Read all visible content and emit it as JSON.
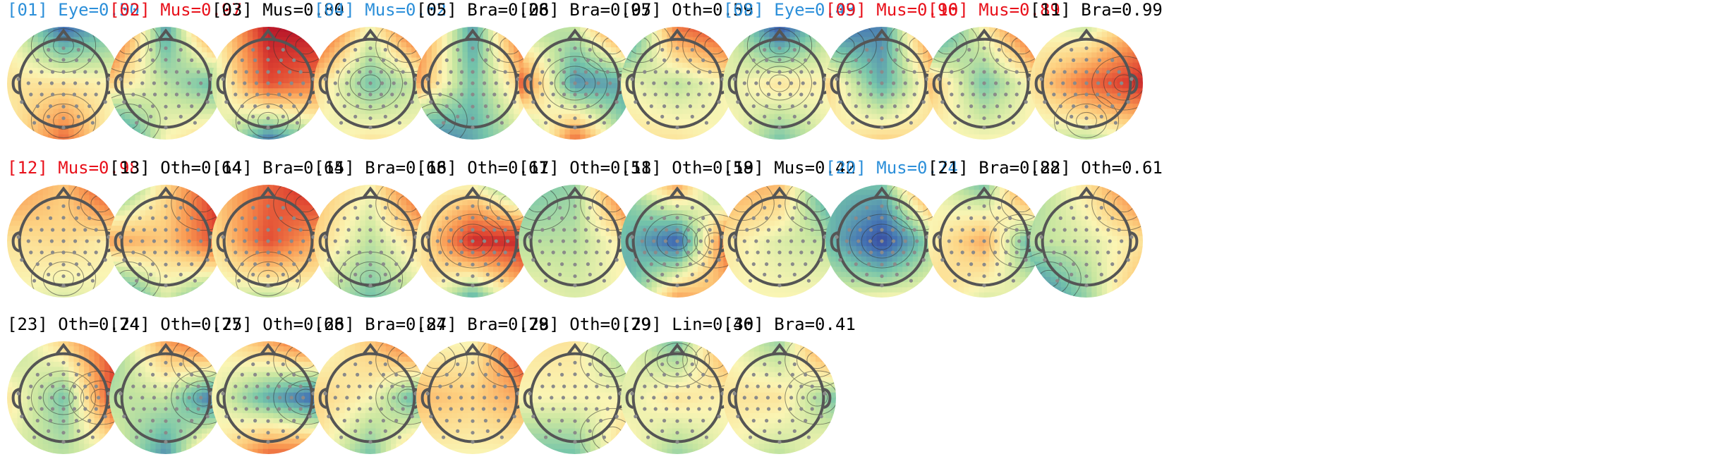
{
  "colors": {
    "black": "#000000",
    "red": "#e8101a",
    "blue": "#2c8fd9"
  },
  "components": [
    {
      "index": "[01]",
      "label": "Eye=0.50",
      "color": "blue",
      "map": [
        [
          0.5,
          0.12,
          0.32
        ],
        [
          0.55,
          0.55,
          0.5
        ],
        [
          0.5,
          0.8,
          0.45
        ]
      ]
    },
    {
      "index": "[02]",
      "label": "Mus=0.97",
      "color": "red",
      "map": [
        [
          0.95,
          0.22,
          0.95
        ],
        [
          0.6,
          0.4,
          0.25
        ],
        [
          0.05,
          0.5,
          0.62
        ]
      ]
    },
    {
      "index": "[03]",
      "label": "Mus=0.80",
      "color": "black",
      "map": [
        [
          0.5,
          0.95,
          0.98
        ],
        [
          0.4,
          0.85,
          0.75
        ],
        [
          0.55,
          0.15,
          0.4
        ]
      ]
    },
    {
      "index": "[04]",
      "label": "Mus=0.62",
      "color": "blue",
      "map": [
        [
          0.95,
          0.48,
          0.98
        ],
        [
          0.6,
          0.3,
          0.45
        ],
        [
          0.45,
          0.55,
          0.5
        ]
      ]
    },
    {
      "index": "[05]",
      "label": "Bra=0.28",
      "color": "black",
      "map": [
        [
          0.8,
          0.22,
          0.95
        ],
        [
          0.7,
          0.3,
          0.65
        ],
        [
          0.1,
          0.25,
          0.45
        ]
      ]
    },
    {
      "index": "[06]",
      "label": "Bra=0.95",
      "color": "black",
      "map": [
        [
          0.35,
          0.42,
          0.92
        ],
        [
          0.85,
          0.2,
          0.25
        ],
        [
          0.2,
          0.8,
          0.3
        ]
      ]
    },
    {
      "index": "[07]",
      "label": "Oth=0.59",
      "color": "black",
      "map": [
        [
          0.06,
          0.78,
          0.92
        ],
        [
          0.5,
          0.4,
          0.52
        ],
        [
          0.55,
          0.55,
          0.48
        ]
      ]
    },
    {
      "index": "[08]",
      "label": "Eye=0.43",
      "color": "blue",
      "map": [
        [
          0.5,
          0.08,
          0.45
        ],
        [
          0.45,
          0.55,
          0.5
        ],
        [
          0.55,
          0.3,
          0.5
        ]
      ]
    },
    {
      "index": "[09]",
      "label": "Mus=0.96",
      "color": "red",
      "map": [
        [
          0.12,
          0.18,
          0.9
        ],
        [
          0.6,
          0.25,
          0.6
        ],
        [
          0.5,
          0.6,
          0.55
        ]
      ]
    },
    {
      "index": "[10]",
      "label": "Mus=0.89",
      "color": "red",
      "map": [
        [
          0.08,
          0.52,
          0.95
        ],
        [
          0.65,
          0.3,
          0.55
        ],
        [
          0.5,
          0.5,
          0.5
        ]
      ]
    },
    {
      "index": "[11]",
      "label": "Bra=0.99",
      "color": "black",
      "map": [
        [
          0.5,
          0.42,
          0.7
        ],
        [
          0.55,
          0.8,
          0.92
        ],
        [
          0.45,
          0.4,
          0.5
        ]
      ]
    },
    {
      "index": "[12]",
      "label": "Mus=0.98",
      "color": "red",
      "map": [
        [
          0.75,
          0.62,
          0.97
        ],
        [
          0.55,
          0.58,
          0.5
        ],
        [
          0.5,
          0.45,
          0.5
        ]
      ]
    },
    {
      "index": "[13]",
      "label": "Oth=0.64",
      "color": "black",
      "map": [
        [
          0.16,
          0.58,
          0.95
        ],
        [
          0.7,
          0.62,
          0.88
        ],
        [
          0.1,
          0.45,
          0.2
        ]
      ]
    },
    {
      "index": "[14]",
      "label": "Bra=0.64",
      "color": "black",
      "map": [
        [
          0.62,
          0.8,
          0.98
        ],
        [
          0.55,
          0.85,
          0.65
        ],
        [
          0.45,
          0.4,
          0.48
        ]
      ]
    },
    {
      "index": "[15]",
      "label": "Bra=0.68",
      "color": "black",
      "map": [
        [
          0.65,
          0.5,
          0.95
        ],
        [
          0.6,
          0.4,
          0.6
        ],
        [
          0.45,
          0.3,
          0.45
        ]
      ]
    },
    {
      "index": "[16]",
      "label": "Oth=0.61",
      "color": "black",
      "map": [
        [
          0.5,
          0.5,
          0.18
        ],
        [
          0.5,
          0.92,
          0.92
        ],
        [
          0.6,
          0.25,
          0.65
        ]
      ]
    },
    {
      "index": "[17]",
      "label": "Oth=0.51",
      "color": "black",
      "map": [
        [
          0.28,
          0.35,
          0.95
        ],
        [
          0.4,
          0.4,
          0.55
        ],
        [
          0.5,
          0.45,
          0.5
        ]
      ]
    },
    {
      "index": "[18]",
      "label": "Oth=0.58",
      "color": "black",
      "map": [
        [
          0.3,
          0.7,
          0.18
        ],
        [
          0.3,
          0.1,
          0.92
        ],
        [
          0.2,
          0.7,
          0.6
        ]
      ]
    },
    {
      "index": "[19]",
      "label": "Mus=0.42",
      "color": "black",
      "map": [
        [
          0.7,
          0.65,
          0.1
        ],
        [
          0.55,
          0.45,
          0.4
        ],
        [
          0.5,
          0.5,
          0.5
        ]
      ]
    },
    {
      "index": "[20]",
      "label": "Mus=0.74",
      "color": "blue",
      "map": [
        [
          0.28,
          0.3,
          0.92
        ],
        [
          0.3,
          0.05,
          0.4
        ],
        [
          0.45,
          0.5,
          0.5
        ]
      ]
    },
    {
      "index": "[21]",
      "label": "Bra=0.88",
      "color": "black",
      "map": [
        [
          0.5,
          0.3,
          0.97
        ],
        [
          0.5,
          0.68,
          0.15
        ],
        [
          0.6,
          0.45,
          0.5
        ]
      ]
    },
    {
      "index": "[22]",
      "label": "Oth=0.61",
      "color": "black",
      "map": [
        [
          0.35,
          0.55,
          0.85
        ],
        [
          0.4,
          0.45,
          0.55
        ],
        [
          0.1,
          0.35,
          0.7
        ]
      ]
    }
  ],
  "components_row3": [
    {
      "index": "[23]",
      "label": "Oth=0.74",
      "color": "black",
      "map": [
        [
          0.35,
          0.6,
          0.88
        ],
        [
          0.55,
          0.3,
          0.95
        ],
        [
          0.45,
          0.4,
          0.5
        ]
      ]
    },
    {
      "index": "[24]",
      "label": "Oth=0.77",
      "color": "black",
      "map": [
        [
          0.3,
          0.7,
          0.9
        ],
        [
          0.4,
          0.42,
          0.08
        ],
        [
          0.5,
          0.2,
          0.8
        ]
      ]
    },
    {
      "index": "[25]",
      "label": "Oth=0.68",
      "color": "black",
      "map": [
        [
          0.5,
          0.68,
          0.92
        ],
        [
          0.5,
          0.25,
          0.08
        ],
        [
          0.5,
          0.8,
          0.8
        ]
      ]
    },
    {
      "index": "[26]",
      "label": "Bra=0.84",
      "color": "black",
      "map": [
        [
          0.45,
          0.62,
          0.92
        ],
        [
          0.6,
          0.5,
          0.2
        ],
        [
          0.55,
          0.3,
          0.75
        ]
      ]
    },
    {
      "index": "[27]",
      "label": "Bra=0.79",
      "color": "black",
      "map": [
        [
          0.5,
          0.5,
          0.97
        ],
        [
          0.65,
          0.6,
          0.7
        ],
        [
          0.5,
          0.5,
          0.5
        ]
      ]
    },
    {
      "index": "[28]",
      "label": "Oth=0.79",
      "color": "black",
      "map": [
        [
          0.55,
          0.55,
          0.28
        ],
        [
          0.5,
          0.5,
          0.5
        ],
        [
          0.3,
          0.3,
          0.65
        ]
      ]
    },
    {
      "index": "[29]",
      "label": "Lin=0.46",
      "color": "black",
      "map": [
        [
          0.5,
          0.3,
          0.8
        ],
        [
          0.45,
          0.55,
          0.5
        ],
        [
          0.55,
          0.35,
          0.5
        ]
      ]
    },
    {
      "index": "[30]",
      "label": "Bra=0.41",
      "color": "black",
      "map": [
        [
          0.5,
          0.35,
          0.9
        ],
        [
          0.55,
          0.55,
          0.3
        ],
        [
          0.5,
          0.4,
          0.55
        ]
      ]
    }
  ]
}
